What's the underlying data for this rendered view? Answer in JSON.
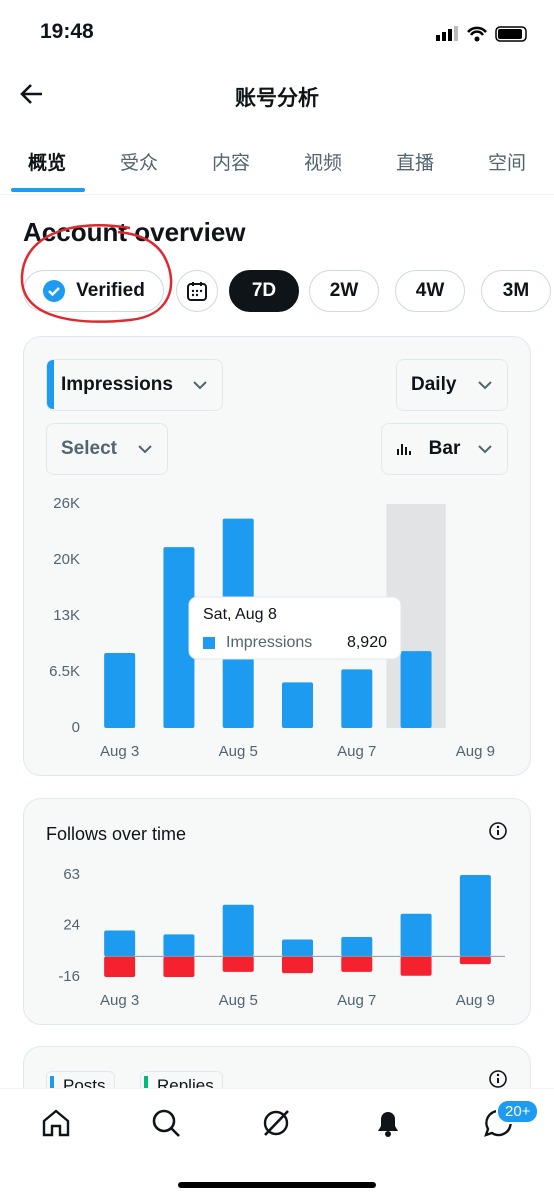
{
  "status": {
    "time": "19:48"
  },
  "header": {
    "title": "账号分析"
  },
  "tabs": [
    "概览",
    "受众",
    "内容",
    "视频",
    "直播",
    "空间"
  ],
  "section": {
    "title": "Account overview"
  },
  "filters": {
    "verified": "Verified",
    "ranges": [
      "7D",
      "2W",
      "4W",
      "3M"
    ]
  },
  "controls": {
    "metric": "Impressions",
    "interval": "Daily",
    "compare": "Select",
    "chart_type": "Bar"
  },
  "charts": [
    {
      "type": "bar",
      "categories": [
        "Aug 3",
        null,
        "Aug 5",
        null,
        "Aug 7",
        null,
        "Aug 9"
      ],
      "series": [
        {
          "color": "#1d9bf0",
          "values": [
            8700,
            21000,
            24300,
            5300,
            6800,
            8920,
            0
          ]
        }
      ],
      "ylim": [
        0,
        26000
      ],
      "yticks": [
        0,
        {
          "value": 6500,
          "label": "6.5K"
        },
        {
          "value": 13000,
          "label": "13K"
        },
        {
          "value": 19500,
          "label": "20K"
        },
        {
          "value": 26000,
          "label": "26K"
        }
      ],
      "grid": false,
      "tooltip": {
        "title": "Sat, Aug 8",
        "name": "Impressions",
        "value": "8,920"
      }
    },
    {
      "type": "bar",
      "title": "Follows over time",
      "categories": [
        "Aug 3",
        null,
        "Aug 5",
        null,
        "Aug 7",
        null,
        "Aug 9"
      ],
      "series": [
        {
          "color": "#1d9bf0",
          "values": [
            20,
            17,
            40,
            13,
            15,
            33,
            63
          ]
        },
        {
          "color": "#f4212e",
          "values": [
            -16,
            -16,
            -12,
            -13,
            -12,
            -15,
            -6
          ]
        }
      ],
      "ylim": [
        -16,
        63
      ],
      "yticks": [
        -16,
        24,
        63
      ],
      "grid": false
    }
  ],
  "next_card": {
    "chips": [
      "Posts",
      "Replies"
    ]
  },
  "nav": {
    "badge": "20+"
  }
}
